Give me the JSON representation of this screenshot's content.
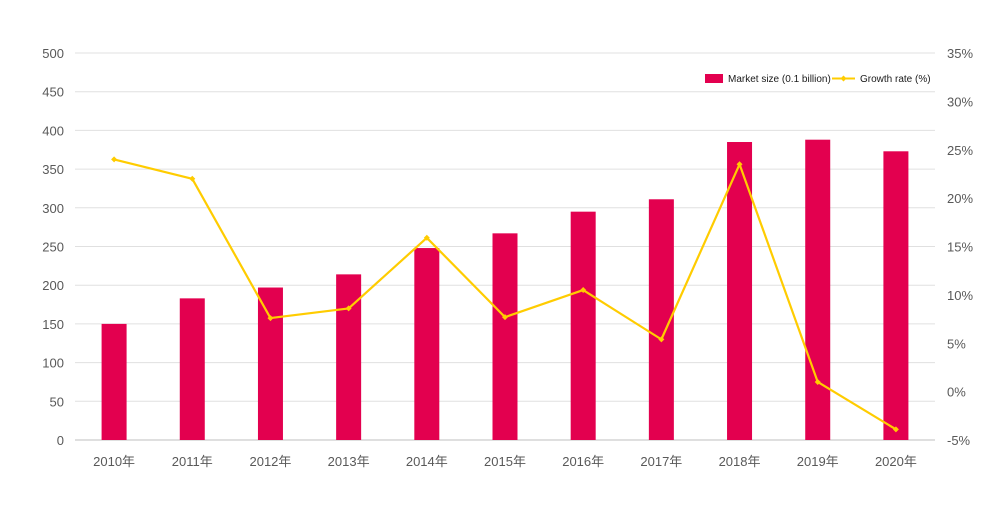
{
  "chart_data": {
    "type": "bar",
    "categories": [
      "2010年",
      "2011年",
      "2012年",
      "2013年",
      "2014年",
      "2015年",
      "2016年",
      "2017年",
      "2018年",
      "2019年",
      "2020年"
    ],
    "series": [
      {
        "name": "Market size (0.1 billion)",
        "type": "bar",
        "axis": "left",
        "color": "#e3004f",
        "values": [
          150,
          183,
          197,
          214,
          248,
          267,
          295,
          311,
          385,
          388,
          373
        ]
      },
      {
        "name": "Growth rate (%)",
        "type": "line",
        "axis": "right",
        "color": "#ffcc00",
        "values": [
          24.0,
          22.0,
          7.6,
          8.6,
          15.9,
          7.7,
          10.5,
          5.4,
          23.5,
          1.0,
          -3.9
        ]
      }
    ],
    "y_left": {
      "range": [
        0,
        500
      ],
      "ticks": [
        "0",
        "50",
        "100",
        "150",
        "200",
        "250",
        "300",
        "350",
        "400",
        "450",
        "500"
      ]
    },
    "y_right": {
      "range": [
        -5,
        35
      ],
      "ticks": [
        "-5%",
        "0%",
        "5%",
        "10%",
        "15%",
        "20%",
        "25%",
        "30%",
        "35%"
      ]
    },
    "grid": true,
    "legend_position": "top-right",
    "title": "",
    "xlabel": "",
    "ylabel": ""
  }
}
